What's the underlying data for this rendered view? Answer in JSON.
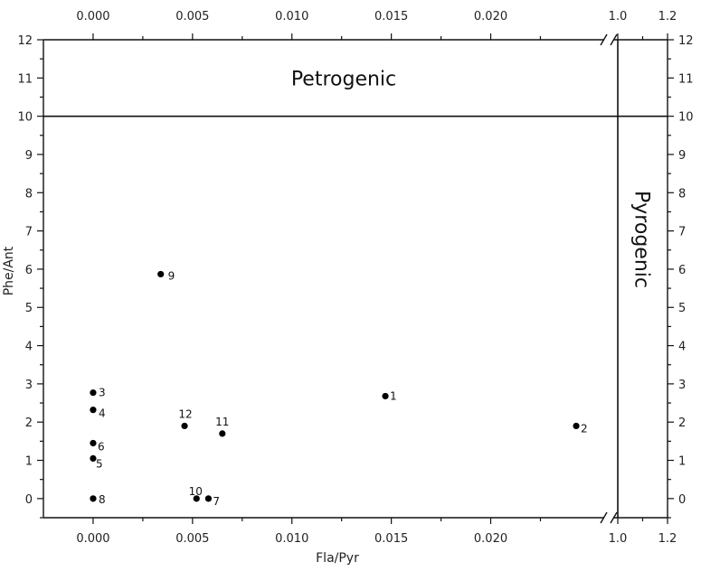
{
  "chart_data": {
    "type": "scatter",
    "xlabel": "Fla/Pyr",
    "ylabel": "Phe/Ant",
    "xlim": [
      -0.0025,
      0.0258
    ],
    "ylim": [
      -0.5,
      12
    ],
    "x_ticks": [
      0.0,
      0.005,
      0.01,
      0.015,
      0.02
    ],
    "x_tick_labels": [
      "0.000",
      "0.005",
      "0.010",
      "0.015",
      "0.020"
    ],
    "x_break_ticks": [
      1.0,
      1.2
    ],
    "x_break_tick_labels": [
      "1.0",
      "1.2"
    ],
    "y_ticks": [
      0,
      1,
      2,
      3,
      4,
      5,
      6,
      7,
      8,
      9,
      10,
      11,
      12
    ],
    "y_tick_labels": [
      "0",
      "1",
      "2",
      "3",
      "4",
      "5",
      "6",
      "7",
      "8",
      "9",
      "10",
      "11",
      "12"
    ],
    "axis_break": "x-axis break between 0.020 and 1.0",
    "threshold_lines": [
      {
        "axis": "y",
        "value": 10
      },
      {
        "axis": "x",
        "value": 1.0
      }
    ],
    "regions": [
      {
        "label": "Petrogenic"
      },
      {
        "label": "Pyrogenic"
      }
    ],
    "points": [
      {
        "label": "1",
        "x": 0.0147,
        "y": 2.68
      },
      {
        "label": "2",
        "x": 0.0243,
        "y": 1.9
      },
      {
        "label": "3",
        "x": 0.0,
        "y": 2.77
      },
      {
        "label": "4",
        "x": 0.0,
        "y": 2.32
      },
      {
        "label": "5",
        "x": 0.0,
        "y": 1.05
      },
      {
        "label": "6",
        "x": 0.0,
        "y": 1.45
      },
      {
        "label": "7",
        "x": 0.0058,
        "y": 0.0
      },
      {
        "label": "8",
        "x": 0.0,
        "y": 0.0
      },
      {
        "label": "9",
        "x": 0.0034,
        "y": 5.87
      },
      {
        "label": "10",
        "x": 0.0052,
        "y": 0.0
      },
      {
        "label": "11",
        "x": 0.0065,
        "y": 1.7
      },
      {
        "label": "12",
        "x": 0.0046,
        "y": 1.9
      }
    ],
    "grid": false,
    "marker_color": "#000000"
  }
}
